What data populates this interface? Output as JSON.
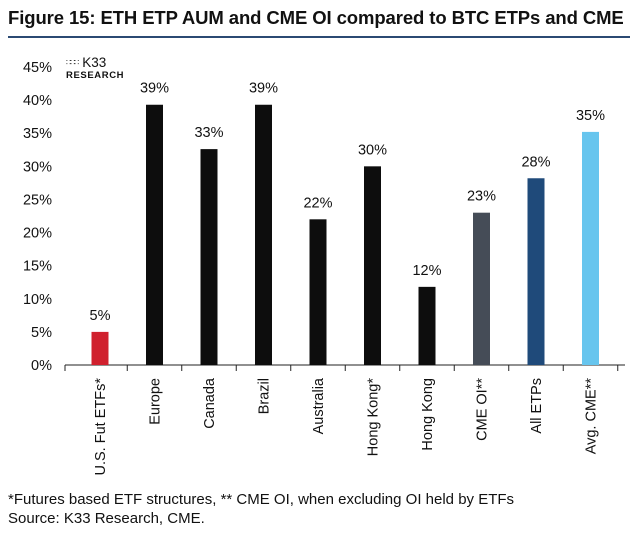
{
  "title": "Figure 15: ETH ETP AUM and CME OI compared to BTC ETPs and CME",
  "logo": {
    "name": "K33",
    "subtitle": "RESEARCH",
    "icon": "dotted-grid-logo-icon"
  },
  "footnotes": [
    "*Futures based ETF structures, ** CME OI, when excluding OI held by ETFs",
    "Source: K33 Research, CME."
  ],
  "chart_data": {
    "type": "bar",
    "title": "Figure 15: ETH ETP AUM and CME OI compared to BTC ETPs and CME",
    "xlabel": "",
    "ylabel": "",
    "ylim": [
      0,
      45
    ],
    "yticks": [
      0,
      5,
      10,
      15,
      20,
      25,
      30,
      35,
      40,
      45
    ],
    "ytick_labels": [
      "0%",
      "5%",
      "10%",
      "15%",
      "20%",
      "25%",
      "30%",
      "35%",
      "40%",
      "45%"
    ],
    "grid": false,
    "legend": "none",
    "categories": [
      "U.S. Fut ETFs*",
      "Europe",
      "Canada",
      "Brazil",
      "Australia",
      "Hong Kong*",
      "Hong Kong",
      "CME OI**",
      "All ETPs",
      "Avg. CME**"
    ],
    "values": [
      5,
      39,
      33,
      39,
      22,
      30,
      12,
      23,
      28,
      35
    ],
    "plot_values": [
      5.0,
      39.3,
      32.6,
      39.3,
      22.0,
      30.0,
      11.8,
      23.0,
      28.2,
      35.2
    ],
    "data_labels": [
      "5%",
      "39%",
      "33%",
      "39%",
      "22%",
      "30%",
      "12%",
      "23%",
      "28%",
      "35%"
    ],
    "colors": [
      "#d0202d",
      "#0d0d0d",
      "#0d0d0d",
      "#0d0d0d",
      "#0d0d0d",
      "#0d0d0d",
      "#0d0d0d",
      "#454c57",
      "#1f4a7a",
      "#67c5ee"
    ]
  }
}
